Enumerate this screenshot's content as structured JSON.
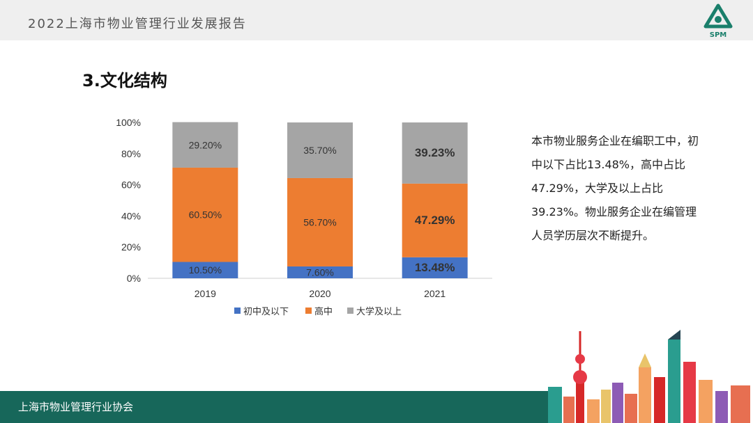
{
  "header": {
    "report_title": "2022上海市物业管理行业发展报告",
    "logo_text": "SPM",
    "logo_color": "#1a7f6b"
  },
  "section": {
    "title": "3.文化结构"
  },
  "description": "本市物业服务企业在编职工中，初中以下占比13.48%，高中占比47.29%，大学及以上占比39.23%。物业服务企业在编管理人员学历层次不断提升。",
  "footer": {
    "text": "上海市物业管理行业协会",
    "color": "#17675a"
  },
  "chart_data": {
    "type": "bar",
    "stacked": true,
    "percent": true,
    "categories": [
      "2019",
      "2020",
      "2021"
    ],
    "series": [
      {
        "name": "初中及以下",
        "values": [
          10.5,
          7.6,
          13.48
        ],
        "labels": [
          "10.50%",
          "7.60%",
          "13.48%"
        ],
        "color": "#4472c4",
        "bold": [
          false,
          false,
          true
        ]
      },
      {
        "name": "高中",
        "values": [
          60.5,
          56.7,
          47.29
        ],
        "labels": [
          "60.50%",
          "56.70%",
          "47.29%"
        ],
        "color": "#ed7d31",
        "bold": [
          false,
          false,
          true
        ]
      },
      {
        "name": "大学及以上",
        "values": [
          29.2,
          35.7,
          39.23
        ],
        "labels": [
          "29.20%",
          "35.70%",
          "39.23%"
        ],
        "color": "#a5a5a5",
        "bold": [
          false,
          false,
          true
        ]
      }
    ],
    "yticks": [
      "0%",
      "20%",
      "40%",
      "60%",
      "80%",
      "100%"
    ],
    "ylim": [
      0,
      100
    ],
    "grid": false,
    "legend": "bottom",
    "title": "",
    "xlabel": "",
    "ylabel": ""
  }
}
